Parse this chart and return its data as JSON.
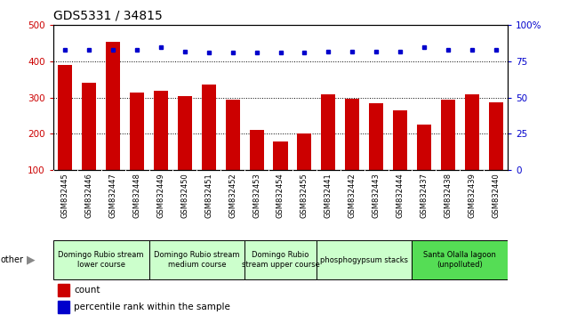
{
  "title": "GDS5331 / 34815",
  "samples": [
    "GSM832445",
    "GSM832446",
    "GSM832447",
    "GSM832448",
    "GSM832449",
    "GSM832450",
    "GSM832451",
    "GSM832452",
    "GSM832453",
    "GSM832454",
    "GSM832455",
    "GSM832441",
    "GSM832442",
    "GSM832443",
    "GSM832444",
    "GSM832437",
    "GSM832438",
    "GSM832439",
    "GSM832440"
  ],
  "counts": [
    390,
    340,
    455,
    315,
    320,
    305,
    335,
    295,
    210,
    178,
    200,
    310,
    298,
    284,
    264,
    225,
    295,
    310,
    288
  ],
  "percentiles": [
    83,
    83,
    83,
    83,
    85,
    82,
    81,
    81,
    81,
    81,
    81,
    82,
    82,
    82,
    82,
    85,
    83,
    83,
    83
  ],
  "groups": [
    {
      "label": "Domingo Rubio stream\nlower course",
      "start": 0,
      "end": 4,
      "color": "#ccffcc"
    },
    {
      "label": "Domingo Rubio stream\nmedium course",
      "start": 4,
      "end": 8,
      "color": "#ccffcc"
    },
    {
      "label": "Domingo Rubio\nstream upper course",
      "start": 8,
      "end": 11,
      "color": "#ccffcc"
    },
    {
      "label": "phosphogypsum stacks",
      "start": 11,
      "end": 15,
      "color": "#ccffcc"
    },
    {
      "label": "Santa Olalla lagoon\n(unpolluted)",
      "start": 15,
      "end": 19,
      "color": "#55dd55"
    }
  ],
  "bar_color": "#cc0000",
  "dot_color": "#0000cc",
  "ylim_left": [
    100,
    500
  ],
  "ylim_right": [
    0,
    100
  ],
  "yticks_left": [
    100,
    200,
    300,
    400,
    500
  ],
  "yticks_right": [
    0,
    25,
    50,
    75,
    100
  ],
  "grid_values": [
    200,
    300,
    400
  ],
  "title_fontsize": 10,
  "tick_label_fontsize": 6,
  "group_label_fontsize": 6,
  "legend_fontsize": 7.5
}
